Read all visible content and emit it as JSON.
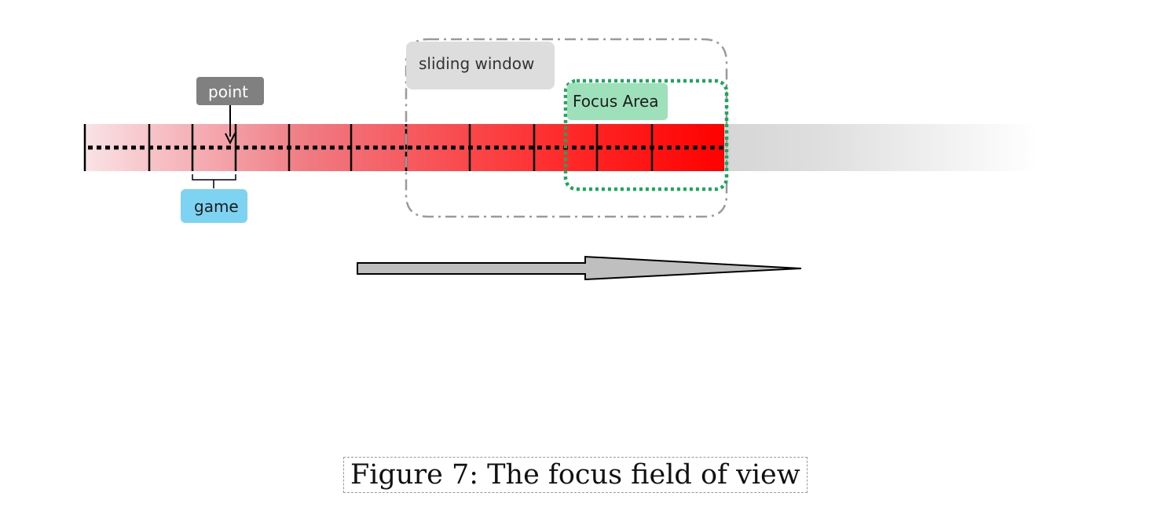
{
  "labels": {
    "point": "point",
    "game": "game",
    "sliding_window": "sliding window",
    "focus_area": "Focus Area"
  },
  "caption": "Figure 7: The focus field of view",
  "colors": {
    "track_start": "#f9e3e6",
    "track_end": "#ff0000",
    "grey_tail_start": "#d6d6d6",
    "grey_tail_end": "#ffffff",
    "point_label_bg": "#808080",
    "game_label_bg": "#7fd3f2",
    "sliding_window_bg": "#dddddd",
    "sliding_window_border": "#9a9a9a",
    "focus_area_bg": "#9ee0b9",
    "focus_area_border": "#1aa85a",
    "arrow_fill": "#bfbfbf"
  }
}
